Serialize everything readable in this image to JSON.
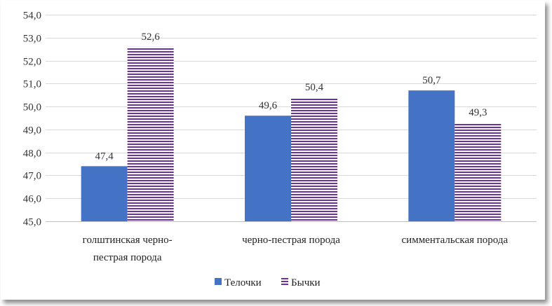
{
  "chart_data": {
    "type": "bar",
    "title": "",
    "xlabel": "",
    "ylabel": "",
    "categories": [
      [
        "голштинская  черно-",
        "пестрая порода"
      ],
      [
        "черно-пестрая порода"
      ],
      [
        "симментальская порода"
      ]
    ],
    "series": [
      {
        "name": "Телочки",
        "values": [
          47.4,
          49.6,
          50.7
        ],
        "value_labels": [
          "47,4",
          "49,6",
          "50,7"
        ],
        "color": "#4472c4",
        "pattern": "solid"
      },
      {
        "name": "Бычки",
        "values": [
          52.6,
          50.4,
          49.3
        ],
        "value_labels": [
          "52,6",
          "50,4",
          "49,3"
        ],
        "color": "#7030a0",
        "pattern": "horizontal-stripes"
      }
    ],
    "ylim": [
      45.0,
      54.0
    ],
    "yticks": [
      45.0,
      46.0,
      47.0,
      48.0,
      49.0,
      50.0,
      51.0,
      52.0,
      53.0,
      54.0
    ],
    "ytick_labels": [
      "45,0",
      "46,0",
      "47,0",
      "48,0",
      "49,0",
      "50,0",
      "51,0",
      "52,0",
      "53,0",
      "54,0"
    ],
    "grid": true,
    "legend_position": "bottom"
  }
}
